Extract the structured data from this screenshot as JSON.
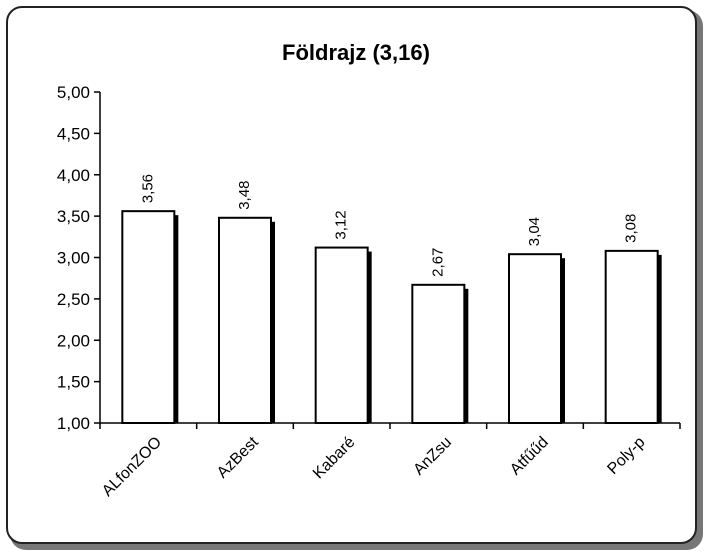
{
  "chart_data": {
    "type": "bar",
    "title": "Földrajz (3,16)",
    "xlabel": "",
    "ylabel": "",
    "ylim": [
      1.0,
      5.0
    ],
    "yticks": [
      "1,00",
      "1,50",
      "2,00",
      "2,50",
      "3,00",
      "3,50",
      "4,00",
      "4,50",
      "5,00"
    ],
    "ytick_values": [
      1.0,
      1.5,
      2.0,
      2.5,
      3.0,
      3.5,
      4.0,
      4.5,
      5.0
    ],
    "categories": [
      "ALfonZOO",
      "AzBest",
      "Kabaré",
      "AnZsu",
      "Atfűűd",
      "Poly-p"
    ],
    "values": [
      3.56,
      3.48,
      3.12,
      2.67,
      3.04,
      3.08
    ],
    "value_labels": [
      "3,56",
      "3,48",
      "3,12",
      "2,67",
      "3,04",
      "3,08"
    ],
    "grid": false,
    "bar_color": "#ffffff",
    "bar_shadow_color": "#000000"
  }
}
